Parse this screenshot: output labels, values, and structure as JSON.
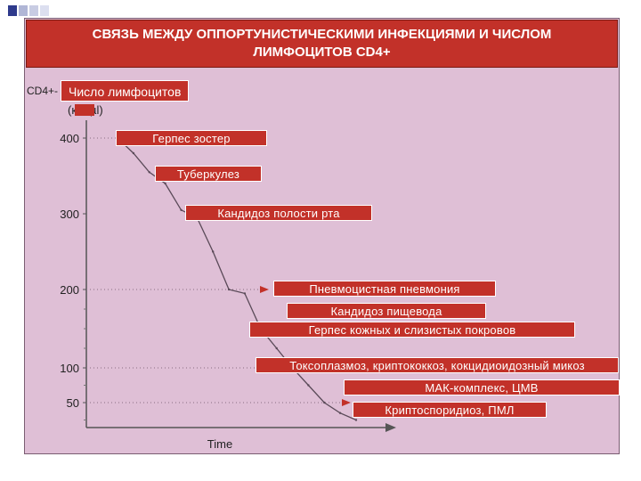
{
  "slide": {
    "title_line1": "СВЯЗЬ МЕЖДУ ОППОРТУНИСТИЧЕСКИМИ ИНФЕКЦИЯМИ И ЧИСЛОМ",
    "title_line2": "ЛИМФОЦИТОВ CD4+",
    "accent_color": "#c23129",
    "background_color": "#dfbfd6"
  },
  "chart_data": {
    "type": "line",
    "title": "СВЯЗЬ МЕЖДУ ОППОРТУНИСТИЧЕСКИМИ ИНФЕКЦИЯМИ И ЧИСЛОМ ЛИМФОЦИТОВ CD4+",
    "ylabel_prefix": "CD4+-",
    "ylabel": "Число лимфоцитов",
    "ylabel_unit": "(кл./µl)",
    "xlabel": "Time",
    "y_ticks": [
      400,
      300,
      200,
      100,
      50
    ],
    "ylim": [
      0,
      400
    ],
    "grid": false,
    "series": [
      {
        "values": [
          400,
          380,
          355,
          340,
          305,
          295,
          250,
          200,
          195,
          150,
          125,
          100,
          75,
          50,
          35,
          25
        ]
      }
    ],
    "annotations": [
      {
        "label": "Герпес зостер",
        "y": 400
      },
      {
        "label": "Туберкулез",
        "y": 355
      },
      {
        "label": "Кандидоз полости рта",
        "y": 305
      },
      {
        "label": "Пневмоцистная пневмония",
        "y": 200
      },
      {
        "label": "Кандидоз пищевода",
        "y": 175
      },
      {
        "label": "Герпес кожных и слизистых покровов",
        "y": 150
      },
      {
        "label": "Токсоплазмоз, криптококкоз, кокцидиоидозный микоз",
        "y": 100
      },
      {
        "label": "МАК-комплекс, ЦМВ",
        "y": 75
      },
      {
        "label": "Криптоспоридиоз, ПМЛ",
        "y": 50
      }
    ]
  }
}
